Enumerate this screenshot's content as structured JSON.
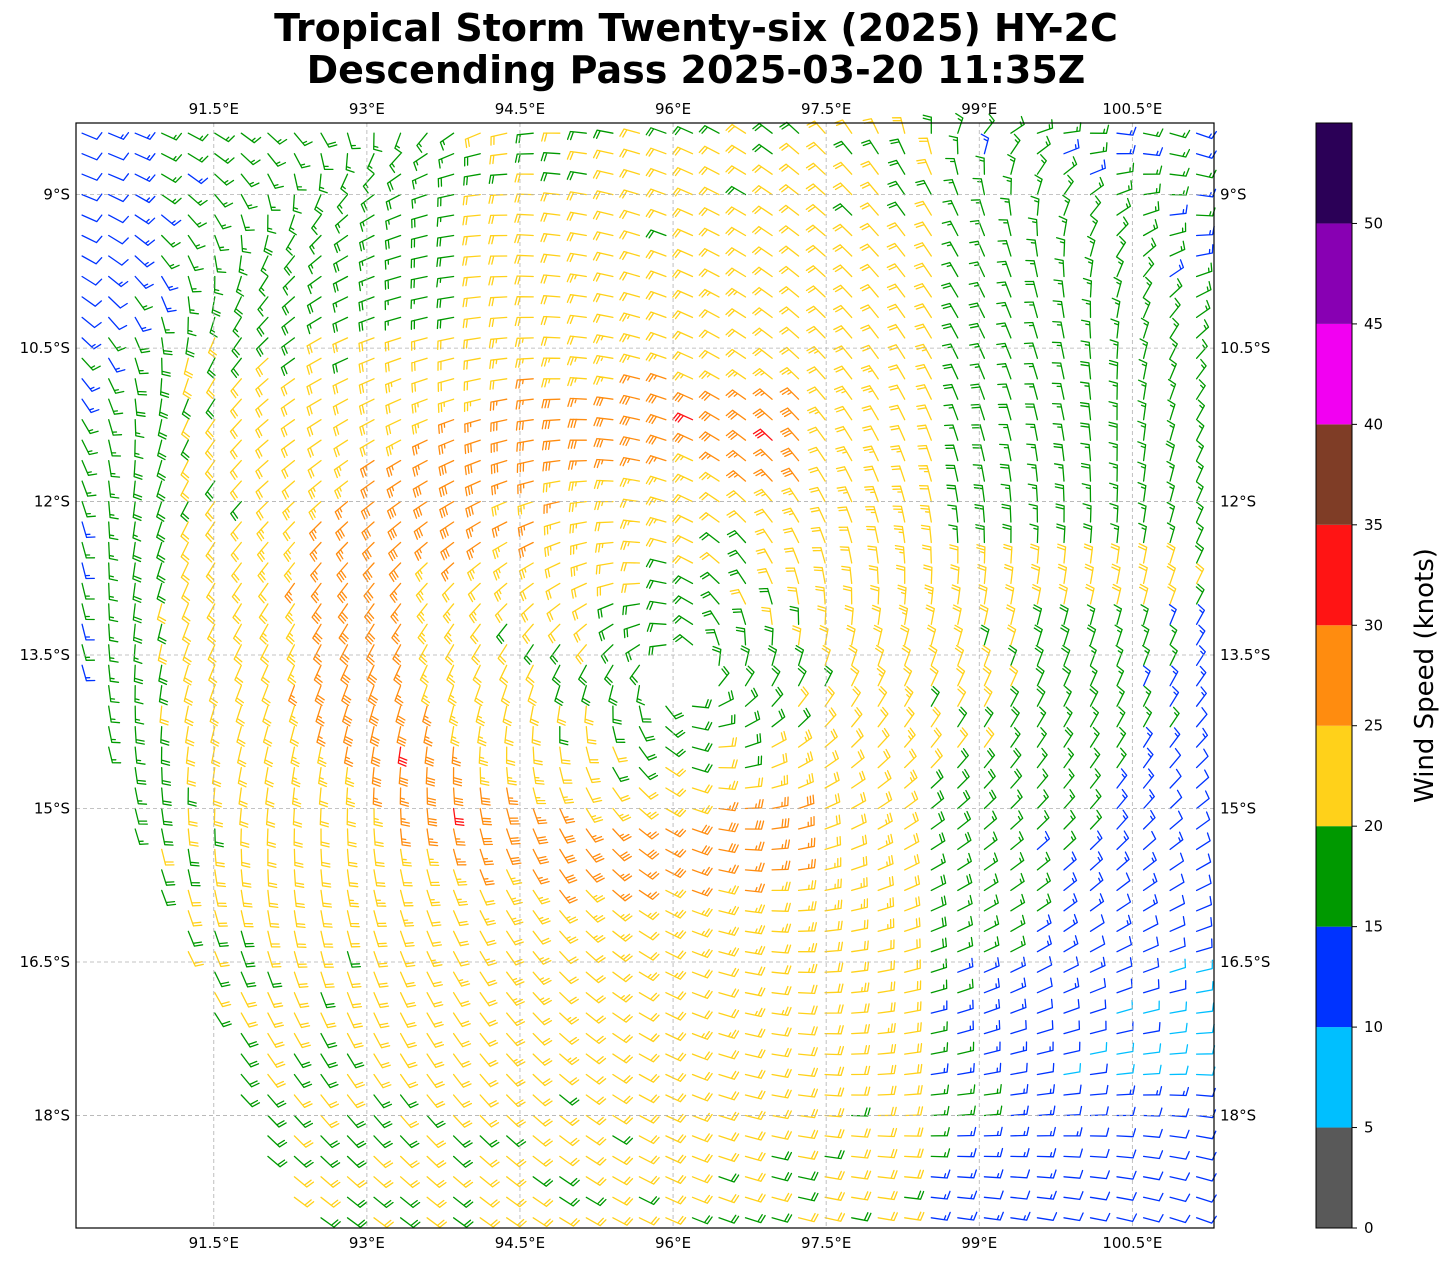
{
  "title": {
    "line1": "Tropical Storm Twenty-six (2025) HY-2C",
    "line2": "Descending Pass 2025-03-20 11:35Z"
  },
  "map": {
    "lon_range": [
      90.15,
      101.3
    ],
    "lat_range": [
      -19.1,
      -8.3
    ],
    "lon_ticks": [
      {
        "value": 91.5,
        "label": "91.5°E"
      },
      {
        "value": 93,
        "label": "93°E"
      },
      {
        "value": 94.5,
        "label": "94.5°E"
      },
      {
        "value": 96,
        "label": "96°E"
      },
      {
        "value": 97.5,
        "label": "97.5°E"
      },
      {
        "value": 99,
        "label": "99°E"
      },
      {
        "value": 100.5,
        "label": "100.5°E"
      }
    ],
    "lat_ticks": [
      {
        "value": -9,
        "label": "9°S"
      },
      {
        "value": -10.5,
        "label": "10.5°S"
      },
      {
        "value": -12,
        "label": "12°S"
      },
      {
        "value": -13.5,
        "label": "13.5°S"
      },
      {
        "value": -15,
        "label": "15°S"
      },
      {
        "value": -16.5,
        "label": "16.5°S"
      },
      {
        "value": -18,
        "label": "18°S"
      }
    ],
    "gridlines": true,
    "storm_center": {
      "lon": 96.1,
      "lat": -13.7
    },
    "orange_ring": {
      "lon": 95.7,
      "lat": -13.3,
      "rx_deg": 2.9,
      "ry_deg": 2.1
    },
    "swath_left_edge": [
      [
        90.15,
        -13.4
      ],
      [
        90.6,
        -14.9
      ],
      [
        91.3,
        -16.6
      ],
      [
        92.0,
        -18.4
      ],
      [
        92.4,
        -19.1
      ]
    ]
  },
  "colorbar": {
    "label": "Wind Speed (knots)",
    "bins": [
      {
        "min": 0,
        "max": 5,
        "color": "#595959"
      },
      {
        "min": 5,
        "max": 10,
        "color": "#00bfff"
      },
      {
        "min": 10,
        "max": 15,
        "color": "#0033ff"
      },
      {
        "min": 15,
        "max": 20,
        "color": "#009900"
      },
      {
        "min": 20,
        "max": 25,
        "color": "#ffd11a"
      },
      {
        "min": 25,
        "max": 30,
        "color": "#ff8c0f"
      },
      {
        "min": 30,
        "max": 35,
        "color": "#ff1414"
      },
      {
        "min": 35,
        "max": 40,
        "color": "#7f3d26"
      },
      {
        "min": 40,
        "max": 45,
        "color": "#f200f2"
      },
      {
        "min": 45,
        "max": 50,
        "color": "#8800b3"
      },
      {
        "min": 50,
        "max": 55,
        "color": "#2b0057"
      }
    ],
    "tick_labels": [
      "0",
      "5",
      "10",
      "15",
      "20",
      "25",
      "30",
      "35",
      "40",
      "45",
      "50"
    ]
  }
}
